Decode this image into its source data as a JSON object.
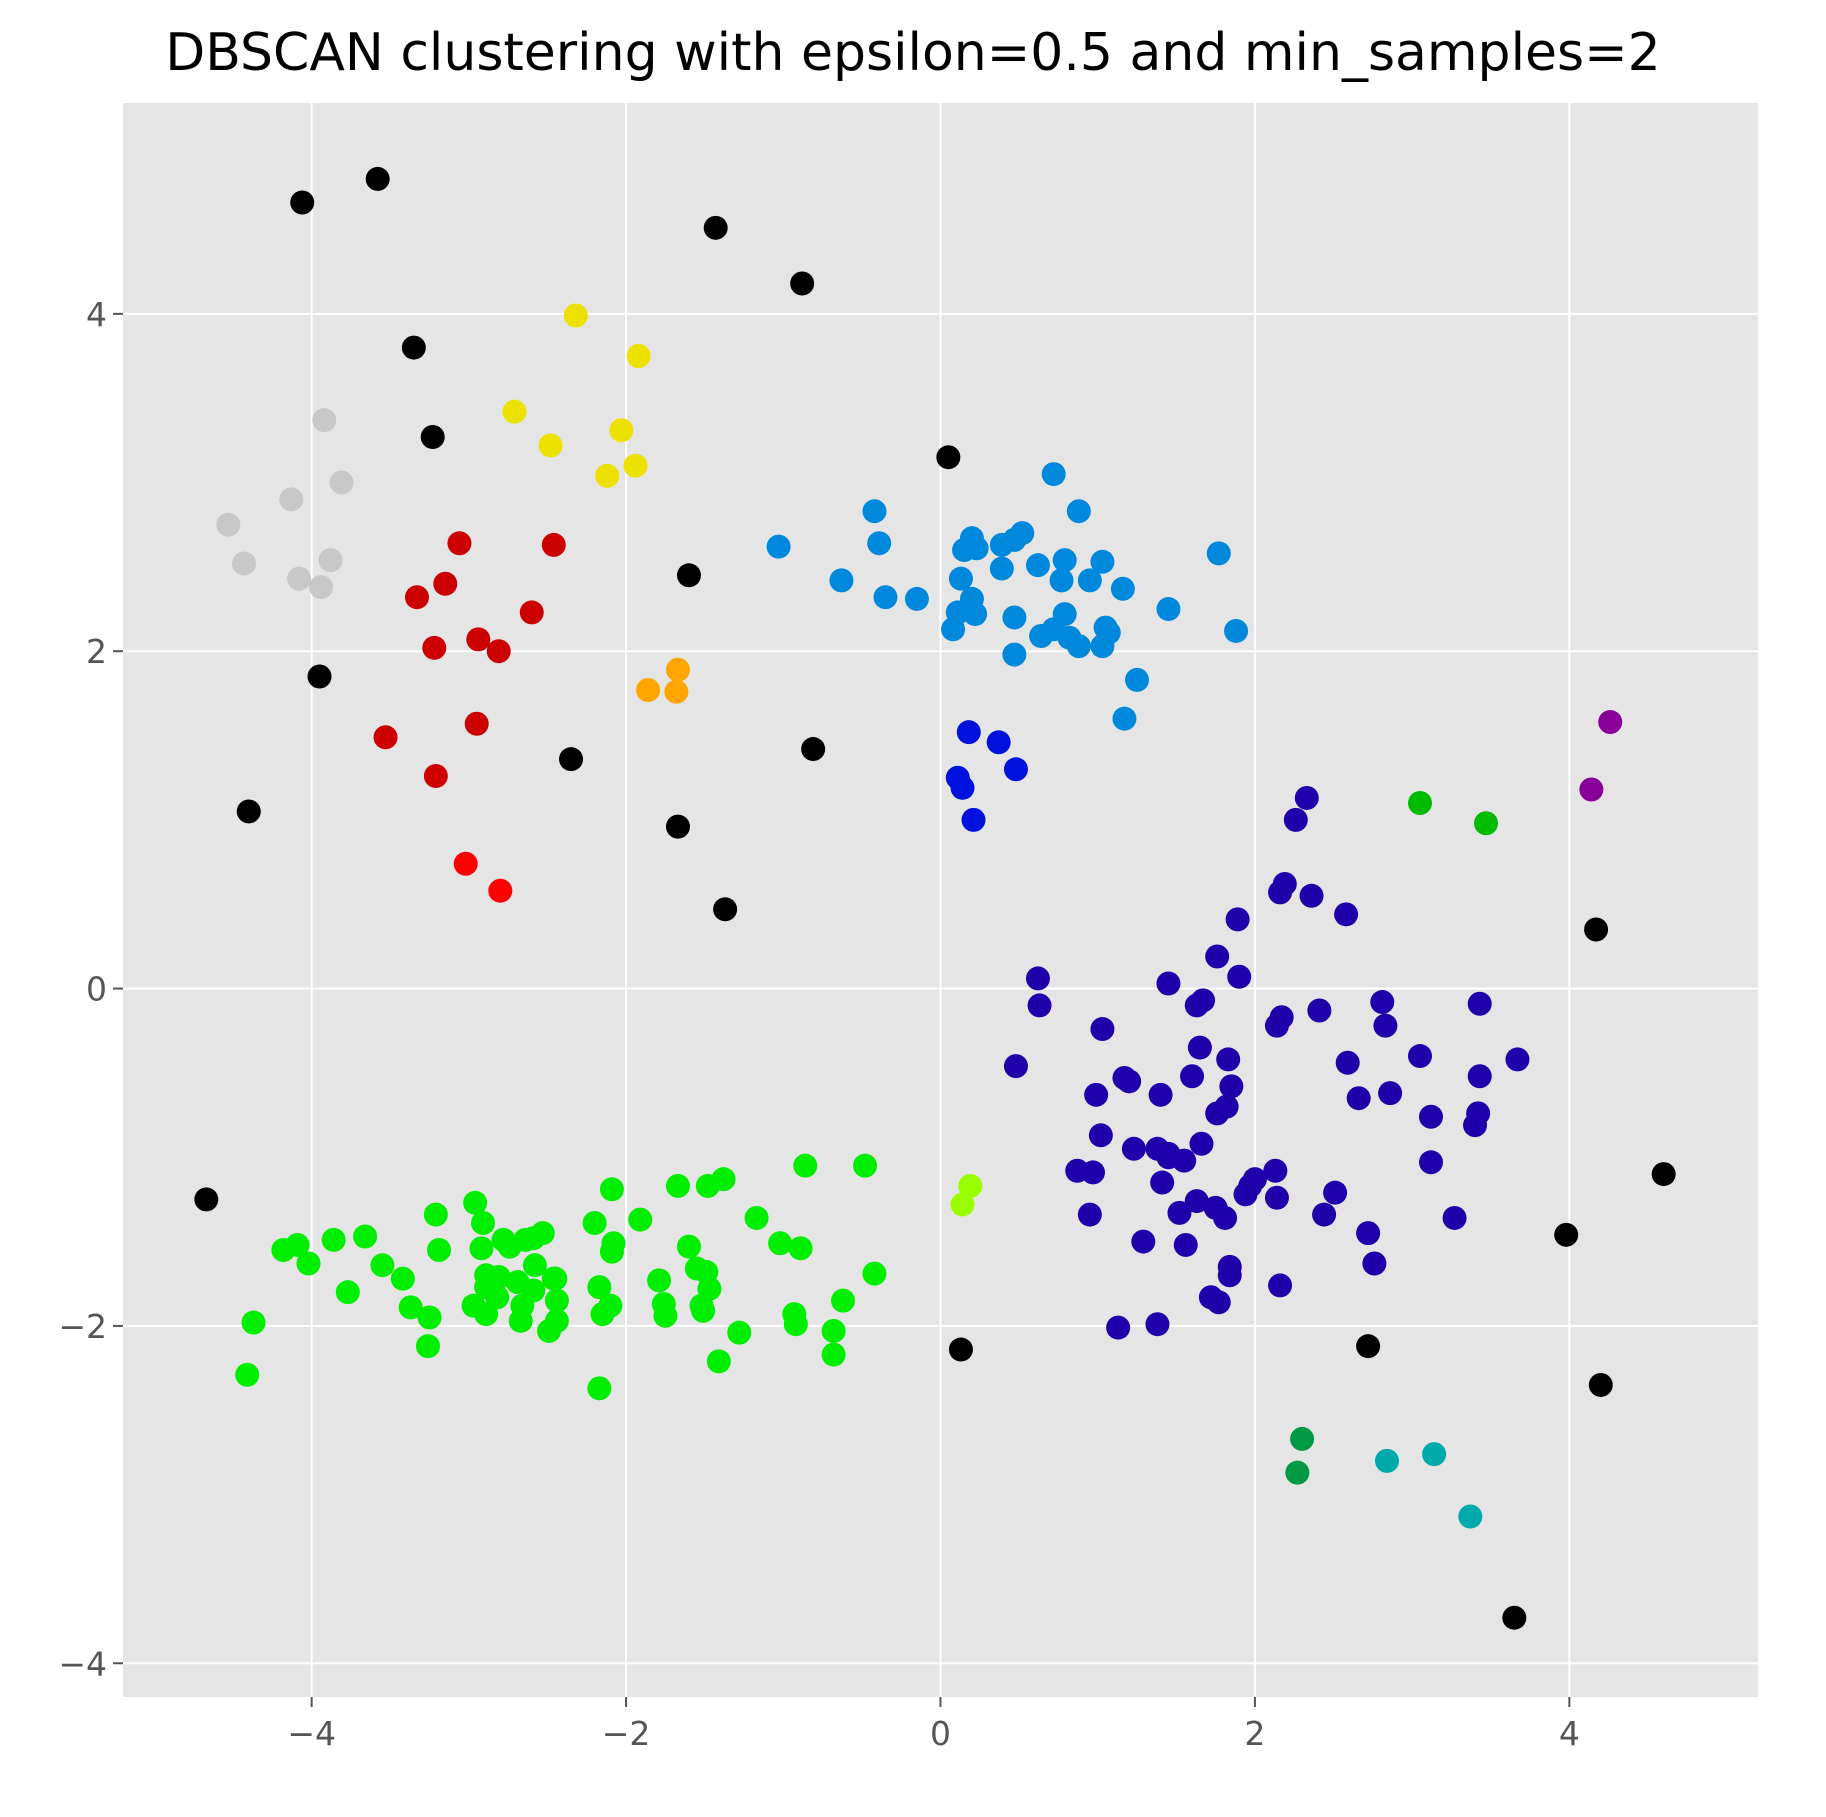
{
  "chart_data": {
    "type": "scatter",
    "title": "DBSCAN clustering with epsilon=0.5 and min_samples=2",
    "xlabel": "",
    "ylabel": "",
    "xlim": [
      -5.2,
      5.2
    ],
    "ylim": [
      -4.2,
      5.25
    ],
    "xticks": [
      -4,
      -2,
      0,
      2,
      4
    ],
    "yticks": [
      -4,
      -2,
      0,
      2,
      4
    ],
    "xtick_labels": [
      "−4",
      "−2",
      "0",
      "2",
      "4"
    ],
    "ytick_labels": [
      "−4",
      "−2",
      "0",
      "2",
      "4"
    ],
    "grid": true,
    "background": "#e5e5e5",
    "legend": "none",
    "series": [
      {
        "color": "#000000",
        "points": [
          [
            -3.58,
            4.8
          ],
          [
            -4.06,
            4.66
          ],
          [
            -1.43,
            4.51
          ],
          [
            -0.88,
            4.18
          ],
          [
            -3.35,
            3.8
          ],
          [
            -3.23,
            3.27
          ],
          [
            0.05,
            3.15
          ],
          [
            -1.6,
            2.45
          ],
          [
            -3.95,
            1.85
          ],
          [
            -2.35,
            1.36
          ],
          [
            -0.81,
            1.42
          ],
          [
            -4.4,
            1.05
          ],
          [
            -1.67,
            0.96
          ],
          [
            -1.37,
            0.47
          ],
          [
            4.17,
            0.35
          ],
          [
            -4.67,
            -1.25
          ],
          [
            4.6,
            -1.1
          ],
          [
            3.98,
            -1.46
          ],
          [
            0.13,
            -2.14
          ],
          [
            2.72,
            -2.12
          ],
          [
            4.2,
            -2.35
          ],
          [
            3.65,
            -3.73
          ]
        ]
      },
      {
        "color": "#c8c8c8",
        "points": [
          [
            -3.92,
            3.37
          ],
          [
            -3.81,
            3.0
          ],
          [
            -4.13,
            2.9
          ],
          [
            -4.53,
            2.75
          ],
          [
            -4.43,
            2.52
          ],
          [
            -4.08,
            2.43
          ],
          [
            -3.88,
            2.54
          ],
          [
            -3.94,
            2.38
          ]
        ]
      },
      {
        "color": "#cc0000",
        "points": [
          [
            -3.06,
            2.64
          ],
          [
            -2.46,
            2.63
          ],
          [
            -3.15,
            2.4
          ],
          [
            -3.33,
            2.32
          ],
          [
            -2.6,
            2.23
          ],
          [
            -3.22,
            2.02
          ],
          [
            -2.94,
            2.07
          ],
          [
            -2.81,
            2.0
          ],
          [
            -3.53,
            1.49
          ],
          [
            -2.95,
            1.57
          ],
          [
            -3.21,
            1.26
          ]
        ]
      },
      {
        "color": "#ff0000",
        "points": [
          [
            -3.02,
            0.74
          ],
          [
            -2.8,
            0.58
          ]
        ]
      },
      {
        "color": "#ede100",
        "points": [
          [
            -2.32,
            3.99
          ],
          [
            -1.92,
            3.75
          ],
          [
            -2.71,
            3.42
          ],
          [
            -2.03,
            3.31
          ],
          [
            -2.48,
            3.22
          ],
          [
            -2.12,
            3.04
          ],
          [
            -1.94,
            3.1
          ]
        ]
      },
      {
        "color": "#ffa500",
        "points": [
          [
            -1.86,
            1.77
          ],
          [
            -1.67,
            1.89
          ],
          [
            -1.68,
            1.76
          ]
        ]
      },
      {
        "color": "#0088dd",
        "points": [
          [
            0.72,
            3.05
          ],
          [
            0.88,
            2.83
          ],
          [
            -0.42,
            2.83
          ],
          [
            -1.03,
            2.62
          ],
          [
            -0.39,
            2.64
          ],
          [
            0.52,
            2.7
          ],
          [
            0.47,
            2.66
          ],
          [
            0.39,
            2.63
          ],
          [
            0.2,
            2.67
          ],
          [
            0.15,
            2.6
          ],
          [
            0.23,
            2.61
          ],
          [
            0.39,
            2.49
          ],
          [
            0.62,
            2.51
          ],
          [
            0.79,
            2.54
          ],
          [
            0.77,
            2.42
          ],
          [
            1.03,
            2.53
          ],
          [
            0.95,
            2.42
          ],
          [
            1.77,
            2.58
          ],
          [
            -0.63,
            2.42
          ],
          [
            -0.35,
            2.32
          ],
          [
            -0.15,
            2.31
          ],
          [
            0.13,
            2.43
          ],
          [
            0.2,
            2.31
          ],
          [
            0.22,
            2.22
          ],
          [
            0.11,
            2.23
          ],
          [
            0.47,
            2.2
          ],
          [
            0.08,
            2.13
          ],
          [
            0.79,
            2.22
          ],
          [
            0.72,
            2.13
          ],
          [
            0.64,
            2.09
          ],
          [
            0.82,
            2.08
          ],
          [
            0.88,
            2.03
          ],
          [
            1.03,
            2.03
          ],
          [
            1.05,
            2.14
          ],
          [
            1.07,
            2.11
          ],
          [
            1.16,
            2.37
          ],
          [
            1.45,
            2.25
          ],
          [
            1.88,
            2.12
          ],
          [
            0.47,
            1.98
          ],
          [
            1.25,
            1.83
          ],
          [
            1.17,
            1.6
          ]
        ]
      },
      {
        "color": "#0011dd",
        "points": [
          [
            0.18,
            1.52
          ],
          [
            0.37,
            1.46
          ],
          [
            0.48,
            1.3
          ],
          [
            0.11,
            1.25
          ],
          [
            0.14,
            1.19
          ],
          [
            0.21,
            1.0
          ]
        ]
      },
      {
        "color": "#1f00aa",
        "points": [
          [
            2.33,
            1.13
          ],
          [
            2.26,
            1.0
          ],
          [
            2.19,
            0.62
          ],
          [
            2.16,
            0.57
          ],
          [
            2.36,
            0.55
          ],
          [
            2.58,
            0.44
          ],
          [
            1.89,
            0.41
          ],
          [
            1.76,
            0.19
          ],
          [
            1.9,
            0.07
          ],
          [
            1.45,
            0.03
          ],
          [
            0.62,
            0.06
          ],
          [
            0.63,
            -0.1
          ],
          [
            1.67,
            -0.07
          ],
          [
            1.63,
            -0.1
          ],
          [
            2.81,
            -0.08
          ],
          [
            3.43,
            -0.09
          ],
          [
            2.17,
            -0.17
          ],
          [
            2.41,
            -0.13
          ],
          [
            2.14,
            -0.22
          ],
          [
            2.83,
            -0.22
          ],
          [
            1.03,
            -0.24
          ],
          [
            1.65,
            -0.35
          ],
          [
            1.83,
            -0.42
          ],
          [
            3.05,
            -0.4
          ],
          [
            3.67,
            -0.42
          ],
          [
            2.59,
            -0.44
          ],
          [
            0.48,
            -0.46
          ],
          [
            1.6,
            -0.52
          ],
          [
            1.17,
            -0.53
          ],
          [
            1.2,
            -0.55
          ],
          [
            3.43,
            -0.52
          ],
          [
            1.85,
            -0.58
          ],
          [
            0.99,
            -0.63
          ],
          [
            1.4,
            -0.63
          ],
          [
            2.86,
            -0.62
          ],
          [
            2.66,
            -0.65
          ],
          [
            1.82,
            -0.7
          ],
          [
            1.76,
            -0.74
          ],
          [
            3.12,
            -0.76
          ],
          [
            3.42,
            -0.74
          ],
          [
            3.4,
            -0.81
          ],
          [
            1.02,
            -0.87
          ],
          [
            1.66,
            -0.92
          ],
          [
            1.23,
            -0.95
          ],
          [
            1.38,
            -0.95
          ],
          [
            1.45,
            -0.98
          ],
          [
            1.55,
            -1.02
          ],
          [
            1.45,
            -1.0
          ],
          [
            3.12,
            -1.03
          ],
          [
            0.87,
            -1.08
          ],
          [
            0.97,
            -1.09
          ],
          [
            1.41,
            -1.15
          ],
          [
            2.13,
            -1.08
          ],
          [
            2.0,
            -1.13
          ],
          [
            1.97,
            -1.17
          ],
          [
            1.94,
            -1.22
          ],
          [
            2.51,
            -1.21
          ],
          [
            2.14,
            -1.24
          ],
          [
            1.75,
            -1.3
          ],
          [
            1.52,
            -1.33
          ],
          [
            1.63,
            -1.26
          ],
          [
            0.95,
            -1.34
          ],
          [
            2.44,
            -1.34
          ],
          [
            1.81,
            -1.36
          ],
          [
            3.27,
            -1.36
          ],
          [
            2.72,
            -1.45
          ],
          [
            1.29,
            -1.5
          ],
          [
            1.56,
            -1.52
          ],
          [
            1.84,
            -1.65
          ],
          [
            2.76,
            -1.63
          ],
          [
            1.84,
            -1.7
          ],
          [
            2.16,
            -1.76
          ],
          [
            1.72,
            -1.83
          ],
          [
            1.77,
            -1.86
          ],
          [
            1.13,
            -2.01
          ],
          [
            1.38,
            -1.99
          ]
        ]
      },
      {
        "color": "#00bb00",
        "points": [
          [
            3.05,
            1.1
          ],
          [
            3.47,
            0.98
          ]
        ]
      },
      {
        "color": "#009944",
        "points": [
          [
            2.3,
            -2.67
          ],
          [
            2.27,
            -2.87
          ]
        ]
      },
      {
        "color": "#00aaaa",
        "points": [
          [
            2.84,
            -2.8
          ],
          [
            3.14,
            -2.76
          ],
          [
            3.37,
            -3.13
          ]
        ]
      },
      {
        "color": "#880099",
        "points": [
          [
            4.26,
            1.58
          ],
          [
            4.14,
            1.18
          ]
        ]
      },
      {
        "color": "#99ff00",
        "points": [
          [
            0.19,
            -1.17
          ],
          [
            0.14,
            -1.28
          ]
        ]
      },
      {
        "color": "#00ee00",
        "points": [
          [
            -0.48,
            -1.05
          ],
          [
            -0.86,
            -1.05
          ],
          [
            -1.38,
            -1.13
          ],
          [
            -1.48,
            -1.17
          ],
          [
            -1.67,
            -1.17
          ],
          [
            -2.09,
            -1.19
          ],
          [
            -2.96,
            -1.27
          ],
          [
            -3.21,
            -1.34
          ],
          [
            -2.91,
            -1.39
          ],
          [
            -1.91,
            -1.37
          ],
          [
            -2.2,
            -1.39
          ],
          [
            -1.17,
            -1.36
          ],
          [
            -2.53,
            -1.45
          ],
          [
            -2.59,
            -1.48
          ],
          [
            -2.64,
            -1.49
          ],
          [
            -3.66,
            -1.47
          ],
          [
            -3.86,
            -1.49
          ],
          [
            -4.09,
            -1.52
          ],
          [
            -4.18,
            -1.55
          ],
          [
            -2.78,
            -1.49
          ],
          [
            -2.74,
            -1.53
          ],
          [
            -2.92,
            -1.54
          ],
          [
            -3.19,
            -1.55
          ],
          [
            -1.02,
            -1.51
          ],
          [
            -0.89,
            -1.54
          ],
          [
            -1.6,
            -1.53
          ],
          [
            -2.08,
            -1.51
          ],
          [
            -2.09,
            -1.56
          ],
          [
            -4.02,
            -1.63
          ],
          [
            -3.55,
            -1.64
          ],
          [
            -1.55,
            -1.66
          ],
          [
            -1.49,
            -1.68
          ],
          [
            -2.58,
            -1.64
          ],
          [
            -2.46,
            -1.72
          ],
          [
            -2.89,
            -1.7
          ],
          [
            -2.81,
            -1.71
          ],
          [
            -3.42,
            -1.72
          ],
          [
            -0.42,
            -1.69
          ],
          [
            -1.79,
            -1.73
          ],
          [
            -2.69,
            -1.74
          ],
          [
            -2.17,
            -1.77
          ],
          [
            -2.89,
            -1.77
          ],
          [
            -2.59,
            -1.79
          ],
          [
            -1.47,
            -1.78
          ],
          [
            -3.77,
            -1.8
          ],
          [
            -2.44,
            -1.85
          ],
          [
            -2.82,
            -1.83
          ],
          [
            -2.66,
            -1.88
          ],
          [
            -2.1,
            -1.88
          ],
          [
            -1.76,
            -1.87
          ],
          [
            -1.52,
            -1.88
          ],
          [
            -0.62,
            -1.85
          ],
          [
            -2.97,
            -1.88
          ],
          [
            -3.37,
            -1.89
          ],
          [
            -2.89,
            -1.93
          ],
          [
            -3.25,
            -1.95
          ],
          [
            -2.15,
            -1.93
          ],
          [
            -1.75,
            -1.94
          ],
          [
            -0.93,
            -1.93
          ],
          [
            -2.67,
            -1.97
          ],
          [
            -1.51,
            -1.91
          ],
          [
            -4.37,
            -1.98
          ],
          [
            -0.92,
            -1.99
          ],
          [
            -2.49,
            -2.03
          ],
          [
            -1.28,
            -2.04
          ],
          [
            -0.68,
            -2.03
          ],
          [
            -3.26,
            -2.12
          ],
          [
            -0.68,
            -2.17
          ],
          [
            -1.41,
            -2.21
          ],
          [
            -4.41,
            -2.29
          ],
          [
            -2.17,
            -2.37
          ],
          [
            -2.44,
            -1.97
          ],
          [
            -2.45,
            -1.72
          ]
        ]
      }
    ]
  }
}
